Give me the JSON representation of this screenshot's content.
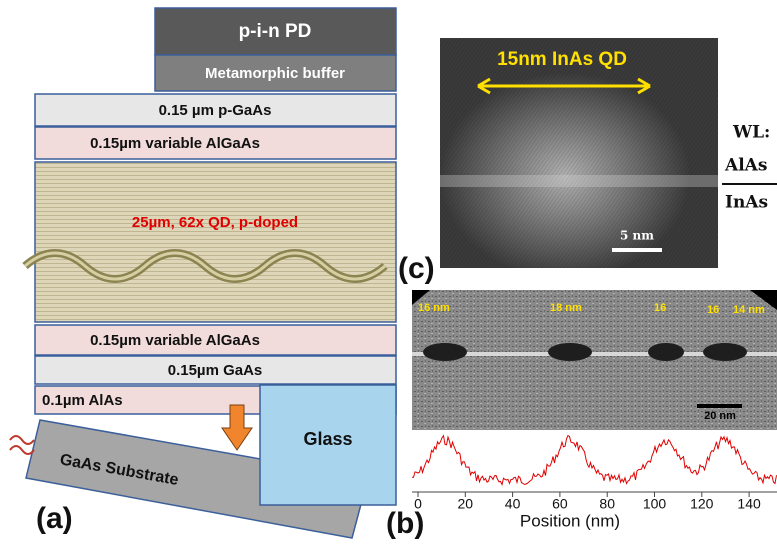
{
  "panel_a": {
    "label": "(a)",
    "layers": [
      "p-i-n PD",
      "Metamorphic buffer",
      "0.15 µm p-GaAs",
      "0.15µm variable AlGaAs",
      "25µm, 62x QD, p-doped",
      "0.15µm variable AlGaAs",
      "0.15µm GaAs",
      "0.1µm AlAs"
    ],
    "substrate": "GaAs Substrate",
    "glass": "Glass"
  },
  "panel_c": {
    "label": "(c)",
    "annotation": "15nm InAs QD",
    "scale": "5 nm",
    "wl": "WL:",
    "top": "AlAs",
    "bottom": "InAs"
  },
  "panel_b": {
    "label": "(b)",
    "sizes": [
      "16 nm",
      "18 nm",
      "16",
      "16",
      "14 nm"
    ],
    "scale": "20 nm",
    "xlabel": "Position (nm)",
    "xticks": [
      "0",
      "20",
      "40",
      "60",
      "80",
      "100",
      "120",
      "140"
    ]
  }
}
